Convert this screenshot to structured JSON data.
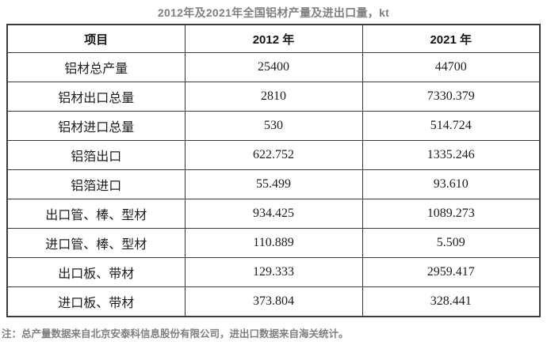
{
  "title": "2012年及2021年全国铝材产量及进出口量，kt",
  "table": {
    "headers": [
      "项目",
      "2012 年",
      "2021 年"
    ],
    "rows": [
      [
        "铝材总产量",
        "25400",
        "44700"
      ],
      [
        "铝材出口总量",
        "2810",
        "7330.379"
      ],
      [
        "铝材进口总量",
        "530",
        "514.724"
      ],
      [
        "铝箔出口",
        "622.752",
        "1335.246"
      ],
      [
        "铝箔进口",
        "55.499",
        "93.610"
      ],
      [
        "出口管、棒、型材",
        "934.425",
        "1089.273"
      ],
      [
        "进口管、棒、型材",
        "110.889",
        "5.509"
      ],
      [
        "出口板、带材",
        "129.333",
        "2959.417"
      ],
      [
        "进口板、带材",
        "373.804",
        "328.441"
      ]
    ]
  },
  "note": "注：总产量数据来自北京安泰科信息股份有限公司，进出口数据来自海关统计。",
  "colors": {
    "title_text": "#7f7f7f",
    "note_text": "#7f7f7f",
    "border": "#3a3a3a",
    "cell_text": "#1c1c1c",
    "background": "#ffffff"
  }
}
